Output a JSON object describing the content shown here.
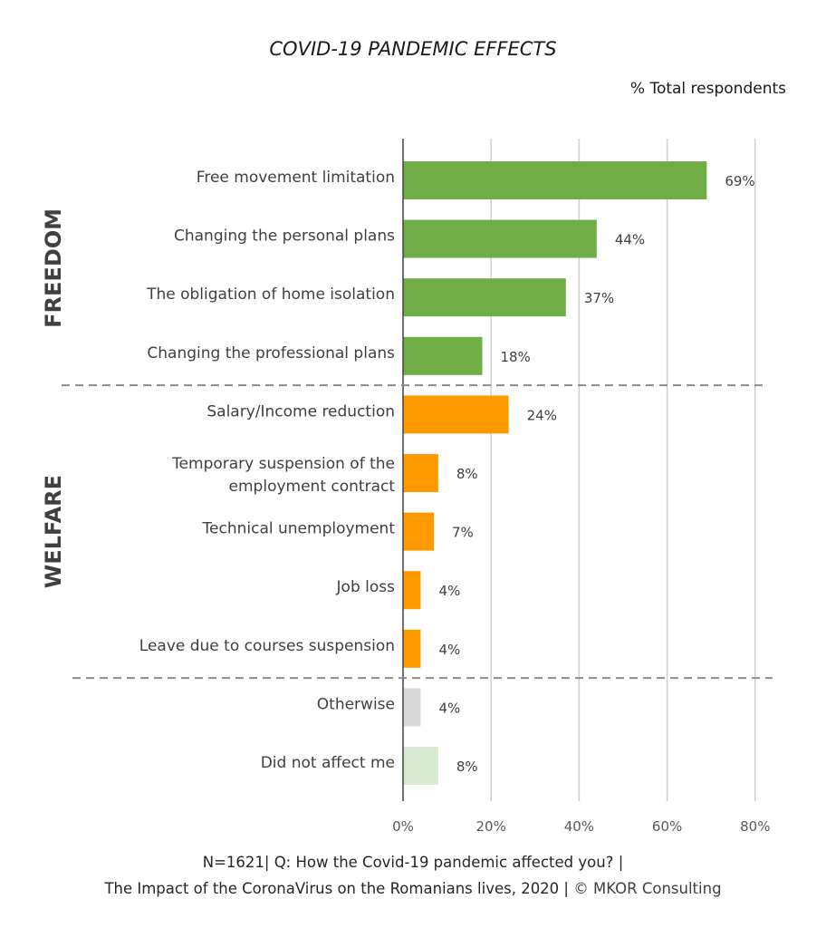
{
  "title": "COVID-19 PANDEMIC EFFECTS",
  "unit_label": "% Total respondents",
  "footer": {
    "line1": "N=1621| Q: How the Covid-19 pandemic affected you? |",
    "line2": "The Impact of the CoronaVirus on the Romanians lives, 2020 |",
    "copyright": "© MKOR Consulting"
  },
  "chart_data": {
    "type": "bar",
    "orientation": "horizontal",
    "title": "COVID-19 PANDEMIC EFFECTS",
    "xlabel": "",
    "ylabel": "",
    "xlim": [
      0,
      80
    ],
    "x_ticks": [
      "0%",
      "20%",
      "40%",
      "60%",
      "80%"
    ],
    "grid": true,
    "groups": [
      {
        "name": "FREEDOM",
        "color": "#70ad47"
      },
      {
        "name": "WELFARE",
        "color": "#ff9900"
      }
    ],
    "categories": [
      "Free movement limitation",
      "Changing the personal plans",
      "The obligation of home isolation",
      "Changing the professional plans",
      "Salary/Income reduction",
      "Temporary suspension of the employment contract",
      "Technical unemployment",
      "Job loss",
      "Leave due to courses suspension",
      "Otherwise",
      "Did not affect me"
    ],
    "values": [
      69,
      44,
      37,
      18,
      24,
      8,
      7,
      4,
      4,
      4,
      8
    ],
    "value_labels": [
      "69%",
      "44%",
      "37%",
      "18%",
      "24%",
      "8%",
      "7%",
      "4%",
      "4%",
      "4%",
      "8%"
    ],
    "bar_group": [
      "FREEDOM",
      "FREEDOM",
      "FREEDOM",
      "FREEDOM",
      "WELFARE",
      "WELFARE",
      "WELFARE",
      "WELFARE",
      "WELFARE",
      "",
      ""
    ],
    "bar_colors": [
      "#70ad47",
      "#70ad47",
      "#70ad47",
      "#70ad47",
      "#ff9900",
      "#ff9900",
      "#ff9900",
      "#ff9900",
      "#ff9900",
      "#d9d9d9",
      "#d9ead3"
    ]
  }
}
